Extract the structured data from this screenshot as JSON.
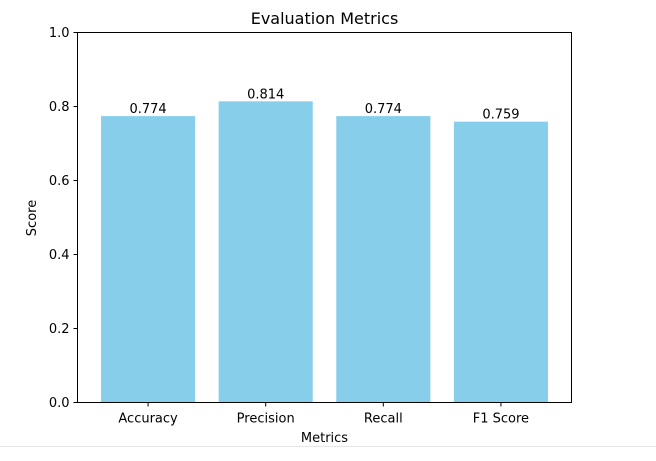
{
  "chart_data": {
    "type": "bar",
    "title": "Evaluation Metrics",
    "xlabel": "Metrics",
    "ylabel": "Score",
    "categories": [
      "Accuracy",
      "Precision",
      "Recall",
      "F1 Score"
    ],
    "values": [
      0.774,
      0.814,
      0.774,
      0.759
    ],
    "value_labels": [
      "0.774",
      "0.814",
      "0.774",
      "0.759"
    ],
    "ylim": [
      0,
      1.0
    ],
    "yticks": [
      0.0,
      0.2,
      0.4,
      0.6,
      0.8,
      1.0
    ],
    "ytick_labels": [
      "0.0",
      "0.2",
      "0.4",
      "0.6",
      "0.8",
      "1.0"
    ],
    "bar_color": "#87ceeb",
    "grid": false,
    "legend": "none"
  }
}
